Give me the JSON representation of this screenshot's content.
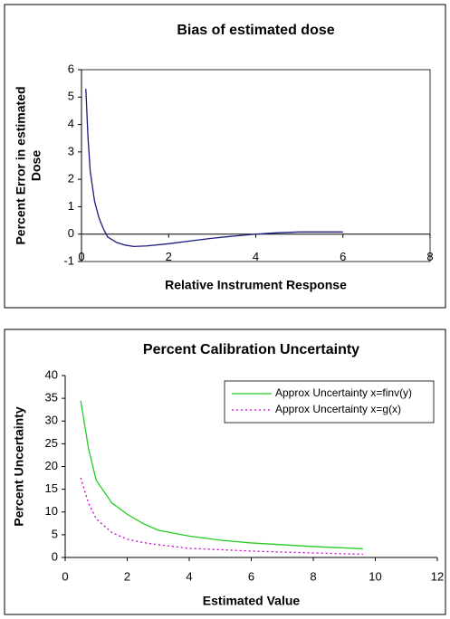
{
  "chart_data": [
    {
      "type": "line",
      "title": "Bias of estimated dose",
      "x_label": "Relative Instrument Response",
      "y_label": "Percent Error in estimated Dose",
      "x": [
        0.1,
        0.15,
        0.2,
        0.3,
        0.4,
        0.5,
        0.6,
        0.8,
        1,
        1.2,
        1.5,
        2,
        2.5,
        3,
        3.5,
        4,
        4.5,
        5,
        5.5,
        6
      ],
      "series": [
        {
          "color": "#1a1a80",
          "values": [
            5.3,
            3.5,
            2.3,
            1.2,
            0.6,
            0.2,
            -0.1,
            -0.3,
            -0.4,
            -0.45,
            -0.43,
            -0.35,
            -0.25,
            -0.15,
            -0.07,
            0,
            0.05,
            0.08,
            0.08,
            0.08
          ]
        }
      ],
      "xlim": [
        0,
        8
      ],
      "ylim": [
        -1,
        6
      ],
      "xticks": [
        0,
        2,
        4,
        6,
        8
      ],
      "yticks": [
        -1,
        0,
        1,
        2,
        3,
        4,
        5,
        6
      ]
    },
    {
      "type": "line",
      "title": "Percent Calibration Uncertainty",
      "x_label": "Estimated Value",
      "y_label": "Percent Uncertainty",
      "x": [
        0.5,
        0.75,
        1,
        1.5,
        2,
        2.5,
        3,
        4,
        5,
        6,
        7,
        8,
        9,
        9.6
      ],
      "series": [
        {
          "name": "Approx Uncertainty x=finv(y)",
          "color": "#22cc22",
          "dash": false,
          "values": [
            34.5,
            24,
            17,
            12,
            9.5,
            7.5,
            6,
            4.7,
            3.8,
            3.2,
            2.8,
            2.4,
            2.1,
            1.9
          ]
        },
        {
          "name": "Approx Uncertainty x=g(x)",
          "color": "#cc00cc",
          "dash": true,
          "values": [
            17.5,
            12,
            8.5,
            5.5,
            4,
            3.3,
            2.8,
            2,
            1.7,
            1.4,
            1.2,
            1,
            0.8,
            0.7
          ]
        }
      ],
      "xlim": [
        0,
        12
      ],
      "ylim": [
        0,
        40
      ],
      "xticks": [
        0,
        2,
        4,
        6,
        8,
        10,
        12
      ],
      "yticks": [
        0,
        5,
        10,
        15,
        20,
        25,
        30,
        35,
        40
      ],
      "legend": "top-right"
    }
  ]
}
